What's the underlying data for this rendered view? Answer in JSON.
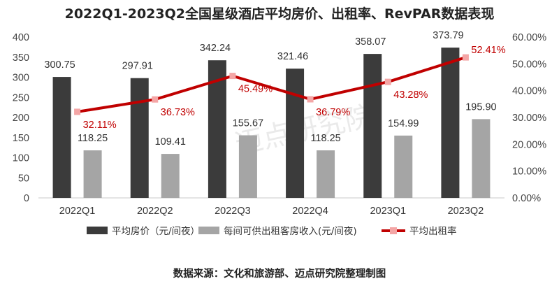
{
  "chart_data": {
    "type": "bar",
    "title": "2022Q1-2023Q2全国星级酒店平均房价、出租率、RevPAR数据表现",
    "categories": [
      "2022Q1",
      "2022Q2",
      "2022Q3",
      "2022Q4",
      "2023Q1",
      "2023Q2"
    ],
    "series": [
      {
        "name": "平均房价（元/间夜）",
        "kind": "bar",
        "axis": "left",
        "color": "#3b3b3b",
        "values": [
          300.75,
          297.91,
          342.24,
          321.46,
          358.07,
          373.79
        ],
        "labels": [
          "300.75",
          "297.91",
          "342.24",
          "321.46",
          "358.07",
          "373.79"
        ]
      },
      {
        "name": "每间可供出租客房收入(元/间夜)",
        "kind": "bar",
        "axis": "left",
        "color": "#a5a5a5",
        "values": [
          118.25,
          109.41,
          155.67,
          118.25,
          154.99,
          195.9
        ],
        "labels": [
          "118.25",
          "109.41",
          "155.67",
          "118.25",
          "154.99",
          "195.90"
        ]
      },
      {
        "name": "平均出租率",
        "kind": "line",
        "axis": "right",
        "color": "#c00000",
        "marker_color": "#f4a6a6",
        "values": [
          32.11,
          36.73,
          45.49,
          36.79,
          43.28,
          52.41
        ],
        "labels": [
          "32.11%",
          "36.73%",
          "45.49%",
          "36.79%",
          "43.28%",
          "52.41%"
        ]
      }
    ],
    "y_left": {
      "ylim": [
        0,
        400
      ],
      "ticks": [
        0,
        50,
        100,
        150,
        200,
        250,
        300,
        350,
        400
      ],
      "tick_labels": [
        "0",
        "50",
        "100",
        "150",
        "200",
        "250",
        "300",
        "350",
        "400"
      ]
    },
    "y_right": {
      "ylim": [
        0,
        60
      ],
      "ticks": [
        0,
        10,
        20,
        30,
        40,
        50,
        60
      ],
      "tick_labels": [
        "0.00%",
        "10.00%",
        "20.00%",
        "30.00%",
        "40.00%",
        "50.00%",
        "60.00%"
      ]
    },
    "grid": false,
    "legend_position": "bottom"
  },
  "watermark": "迈点研究院",
  "source": "数据来源：文化和旅游部、迈点研究院整理制图"
}
